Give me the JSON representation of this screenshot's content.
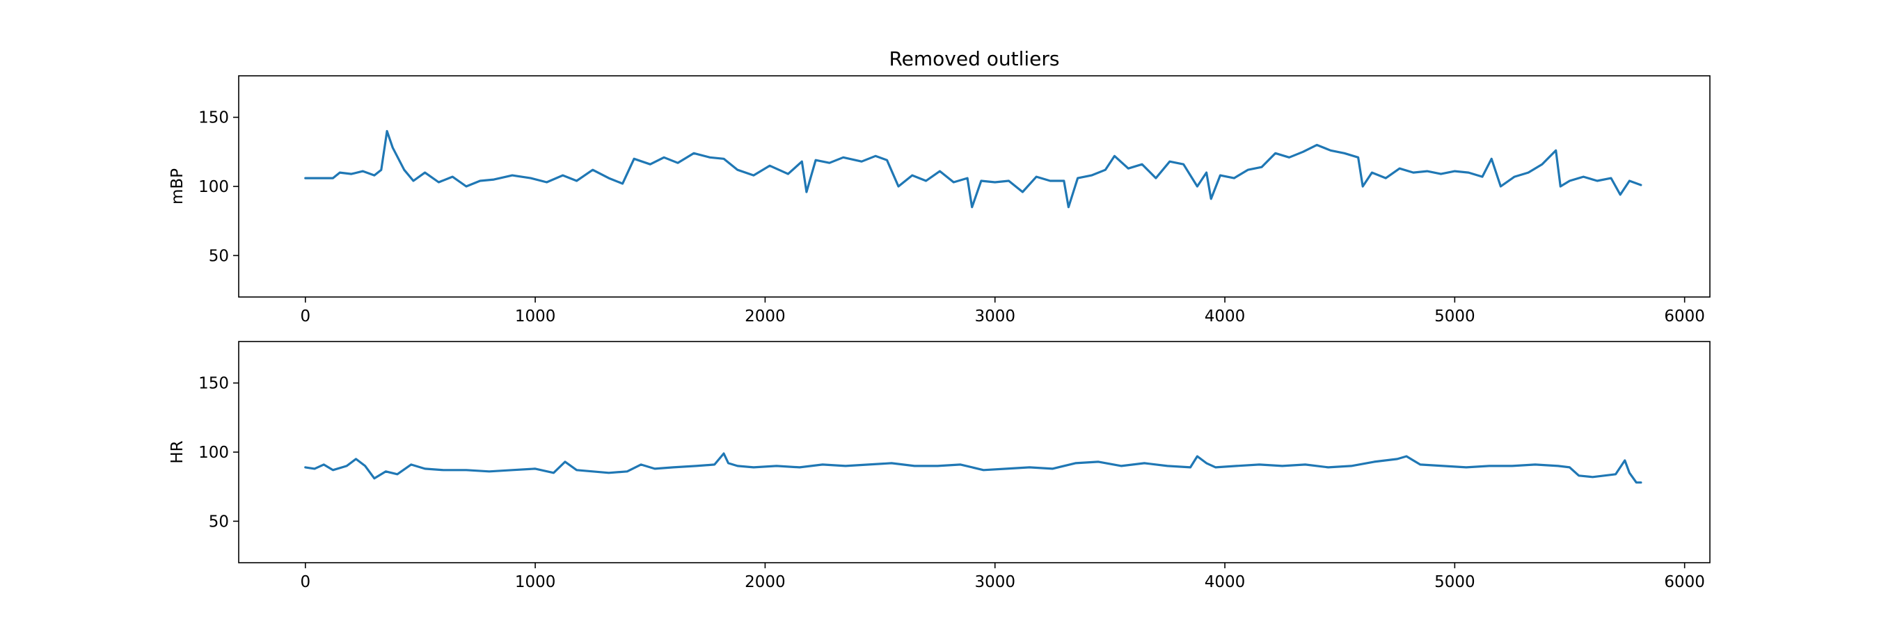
{
  "figure": {
    "title": "Removed outliers"
  },
  "colors": {
    "series": "#1f77b4",
    "axes": "#000000",
    "background": "#ffffff"
  },
  "chart_data": [
    {
      "type": "line",
      "title": "Removed outliers",
      "xlabel": "",
      "ylabel": "mBP",
      "xlim": [
        -290,
        6110
      ],
      "ylim": [
        20,
        180
      ],
      "xticks": [
        0,
        1000,
        2000,
        3000,
        4000,
        5000,
        6000
      ],
      "yticks": [
        50,
        100,
        150
      ],
      "grid": false,
      "series": [
        {
          "x": [
            0,
            120,
            150,
            200,
            250,
            300,
            330,
            355,
            380,
            430,
            470,
            520,
            580,
            640,
            700,
            760,
            820,
            900,
            980,
            1050,
            1120,
            1180,
            1250,
            1320,
            1380,
            1430,
            1500,
            1560,
            1620,
            1690,
            1760,
            1820,
            1880,
            1950,
            2020,
            2100,
            2160,
            2180,
            2220,
            2280,
            2340,
            2420,
            2480,
            2530,
            2580,
            2640,
            2700,
            2760,
            2820,
            2880,
            2900,
            2940,
            3000,
            3060,
            3120,
            3180,
            3240,
            3300,
            3320,
            3360,
            3420,
            3480,
            3520,
            3580,
            3640,
            3700,
            3760,
            3820,
            3880,
            3920,
            3940,
            3980,
            4040,
            4100,
            4160,
            4220,
            4280,
            4340,
            4400,
            4460,
            4520,
            4580,
            4600,
            4640,
            4700,
            4760,
            4820,
            4880,
            4940,
            5000,
            5060,
            5120,
            5160,
            5200,
            5260,
            5320,
            5380,
            5440,
            5460,
            5500,
            5560,
            5620,
            5680,
            5720,
            5760,
            5810
          ],
          "values": [
            106,
            106,
            110,
            109,
            111,
            108,
            112,
            140,
            128,
            112,
            104,
            110,
            103,
            107,
            100,
            104,
            105,
            108,
            106,
            103,
            108,
            104,
            112,
            106,
            102,
            120,
            116,
            121,
            117,
            124,
            121,
            120,
            112,
            108,
            115,
            109,
            118,
            96,
            119,
            117,
            121,
            118,
            122,
            119,
            100,
            108,
            104,
            111,
            103,
            106,
            85,
            104,
            103,
            104,
            96,
            107,
            104,
            104,
            85,
            106,
            108,
            112,
            122,
            113,
            116,
            106,
            118,
            116,
            100,
            110,
            91,
            108,
            106,
            112,
            114,
            124,
            121,
            125,
            130,
            126,
            124,
            121,
            100,
            110,
            106,
            113,
            110,
            111,
            109,
            111,
            110,
            107,
            120,
            100,
            107,
            110,
            116,
            126,
            100,
            104,
            107,
            104,
            106,
            94,
            104,
            101
          ]
        }
      ]
    },
    {
      "type": "line",
      "title": "",
      "xlabel": "",
      "ylabel": "HR",
      "xlim": [
        -290,
        6110
      ],
      "ylim": [
        20,
        180
      ],
      "xticks": [
        0,
        1000,
        2000,
        3000,
        4000,
        5000,
        6000
      ],
      "yticks": [
        50,
        100,
        150
      ],
      "grid": false,
      "series": [
        {
          "x": [
            0,
            40,
            80,
            120,
            180,
            220,
            260,
            300,
            350,
            400,
            460,
            520,
            600,
            700,
            800,
            900,
            1000,
            1080,
            1130,
            1180,
            1250,
            1320,
            1400,
            1460,
            1520,
            1600,
            1700,
            1780,
            1820,
            1840,
            1880,
            1950,
            2050,
            2150,
            2250,
            2350,
            2450,
            2550,
            2650,
            2750,
            2850,
            2950,
            3050,
            3150,
            3250,
            3350,
            3450,
            3550,
            3650,
            3750,
            3850,
            3880,
            3920,
            3960,
            4050,
            4150,
            4250,
            4350,
            4450,
            4550,
            4650,
            4750,
            4790,
            4850,
            4950,
            5050,
            5150,
            5250,
            5350,
            5450,
            5500,
            5540,
            5600,
            5650,
            5700,
            5740,
            5760,
            5790,
            5810
          ],
          "values": [
            89,
            88,
            91,
            87,
            90,
            95,
            90,
            81,
            86,
            84,
            91,
            88,
            87,
            87,
            86,
            87,
            88,
            85,
            93,
            87,
            86,
            85,
            86,
            91,
            88,
            89,
            90,
            91,
            99,
            92,
            90,
            89,
            90,
            89,
            91,
            90,
            91,
            92,
            90,
            90,
            91,
            87,
            88,
            89,
            88,
            92,
            93,
            90,
            92,
            90,
            89,
            97,
            92,
            89,
            90,
            91,
            90,
            91,
            89,
            90,
            93,
            95,
            97,
            91,
            90,
            89,
            90,
            90,
            91,
            90,
            89,
            83,
            82,
            83,
            84,
            94,
            85,
            78,
            78
          ]
        }
      ]
    }
  ]
}
